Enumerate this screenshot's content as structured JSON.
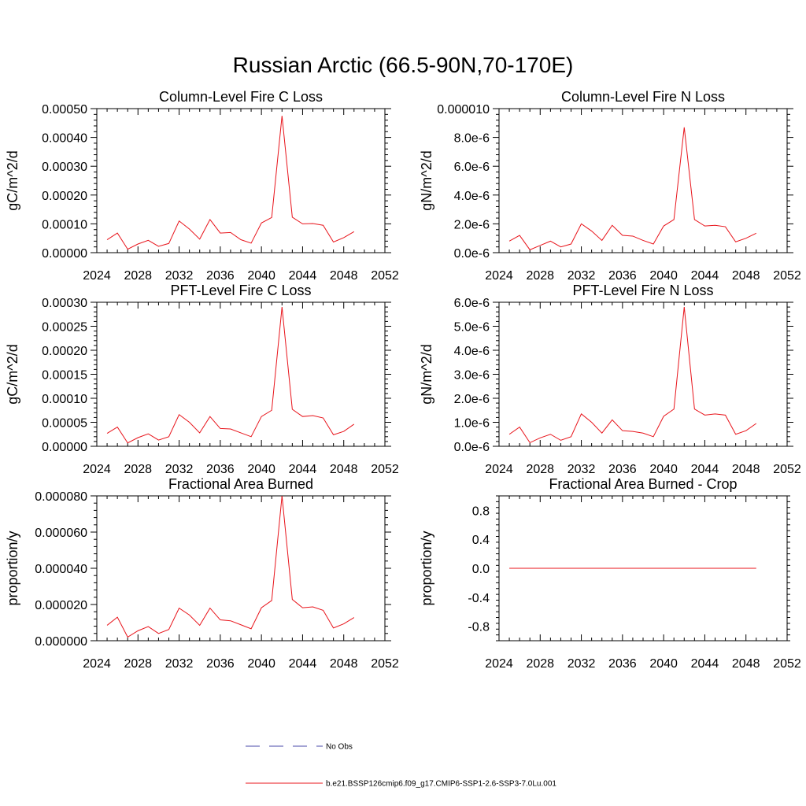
{
  "figure_title": "Russian Arctic (66.5-90N,70-170E)",
  "chart_data": [
    {
      "type": "line",
      "title": "Column-Level Fire C Loss",
      "ylabel": "gC/m^2/d",
      "xlim": [
        2024,
        2052
      ],
      "xticks": [
        "2024",
        "2028",
        "2032",
        "2036",
        "2040",
        "2044",
        "2048",
        "2052"
      ],
      "ylim": [
        0,
        0.0005
      ],
      "yticks": [
        "0.00000",
        "0.00010",
        "0.00020",
        "0.00030",
        "0.00040",
        "0.00050"
      ],
      "series": [
        {
          "name": "b.e21.BSSP126cmip6.f09_g17.CMIP6-SSP1-2.6-SSP3-7.0Lu.001",
          "color": "#e8141b",
          "x": [
            2025,
            2026,
            2027,
            2028,
            2029,
            2030,
            2031,
            2032,
            2033,
            2034,
            2035,
            2036,
            2037,
            2038,
            2039,
            2040,
            2041,
            2042,
            2043,
            2044,
            2045,
            2046,
            2047,
            2048,
            2049
          ],
          "values": [
            4.5e-05,
            6.8e-05,
            1.2e-05,
            3e-05,
            4.3e-05,
            2.2e-05,
            3.2e-05,
            0.00011,
            8.2e-05,
            4.7e-05,
            0.000115,
            6.8e-05,
            7e-05,
            4.5e-05,
            3.3e-05,
            0.000103,
            0.000122,
            0.000475,
            0.000123,
            0.0001,
            0.000101,
            9.5e-05,
            3.7e-05,
            5.2e-05,
            7.3e-05
          ]
        }
      ]
    },
    {
      "type": "line",
      "title": "Column-Level Fire N Loss",
      "ylabel": "gN/m^2/d",
      "xlim": [
        2024,
        2052
      ],
      "xticks": [
        "2024",
        "2028",
        "2032",
        "2036",
        "2040",
        "2044",
        "2048",
        "2052"
      ],
      "ylim": [
        0,
        1e-05
      ],
      "yticks": [
        "0.0e-6",
        "2.0e-6",
        "4.0e-6",
        "6.0e-6",
        "8.0e-6",
        "0.000010"
      ],
      "series": [
        {
          "name": "b.e21.BSSP126cmip6.f09_g17.CMIP6-SSP1-2.6-SSP3-7.0Lu.001",
          "color": "#e8141b",
          "x": [
            2025,
            2026,
            2027,
            2028,
            2029,
            2030,
            2031,
            2032,
            2033,
            2034,
            2035,
            2036,
            2037,
            2038,
            2039,
            2040,
            2041,
            2042,
            2043,
            2044,
            2045,
            2046,
            2047,
            2048,
            2049
          ],
          "values": [
            8e-07,
            1.2e-06,
            2e-07,
            5e-07,
            8e-07,
            4e-07,
            6e-07,
            2e-06,
            1.5e-06,
            8.5e-07,
            1.9e-06,
            1.2e-06,
            1.15e-06,
            8.5e-07,
            6e-07,
            1.85e-06,
            2.3e-06,
            8.7e-06,
            2.3e-06,
            1.85e-06,
            1.9e-06,
            1.8e-06,
            7.5e-07,
            1e-06,
            1.35e-06
          ]
        }
      ]
    },
    {
      "type": "line",
      "title": "PFT-Level Fire C Loss",
      "ylabel": "gC/m^2/d",
      "xlim": [
        2024,
        2052
      ],
      "xticks": [
        "2024",
        "2028",
        "2032",
        "2036",
        "2040",
        "2044",
        "2048",
        "2052"
      ],
      "ylim": [
        0,
        0.0003
      ],
      "yticks": [
        "0.00000",
        "0.00005",
        "0.00010",
        "0.00015",
        "0.00020",
        "0.00025",
        "0.00030"
      ],
      "series": [
        {
          "name": "b.e21.BSSP126cmip6.f09_g17.CMIP6-SSP1-2.6-SSP3-7.0Lu.001",
          "color": "#e8141b",
          "x": [
            2025,
            2026,
            2027,
            2028,
            2029,
            2030,
            2031,
            2032,
            2033,
            2034,
            2035,
            2036,
            2037,
            2038,
            2039,
            2040,
            2041,
            2042,
            2043,
            2044,
            2045,
            2046,
            2047,
            2048,
            2049
          ],
          "values": [
            2.7e-05,
            4e-05,
            7e-06,
            1.8e-05,
            2.6e-05,
            1.3e-05,
            2e-05,
            6.6e-05,
            5e-05,
            2.8e-05,
            6.2e-05,
            3.7e-05,
            3.6e-05,
            2.8e-05,
            2e-05,
            6.2e-05,
            7.5e-05,
            0.00029,
            7.7e-05,
            6.2e-05,
            6.4e-05,
            5.9e-05,
            2.4e-05,
            3.1e-05,
            4.6e-05
          ]
        }
      ]
    },
    {
      "type": "line",
      "title": "PFT-Level Fire N Loss",
      "ylabel": "gN/m^2/d",
      "xlim": [
        2024,
        2052
      ],
      "xticks": [
        "2024",
        "2028",
        "2032",
        "2036",
        "2040",
        "2044",
        "2048",
        "2052"
      ],
      "ylim": [
        0,
        6e-06
      ],
      "yticks": [
        "0.0e-6",
        "1.0e-6",
        "2.0e-6",
        "3.0e-6",
        "4.0e-6",
        "5.0e-6",
        "6.0e-6"
      ],
      "series": [
        {
          "name": "b.e21.BSSP126cmip6.f09_g17.CMIP6-SSP1-2.6-SSP3-7.0Lu.001",
          "color": "#e8141b",
          "x": [
            2025,
            2026,
            2027,
            2028,
            2029,
            2030,
            2031,
            2032,
            2033,
            2034,
            2035,
            2036,
            2037,
            2038,
            2039,
            2040,
            2041,
            2042,
            2043,
            2044,
            2045,
            2046,
            2047,
            2048,
            2049
          ],
          "values": [
            5e-07,
            8e-07,
            1.5e-07,
            3.5e-07,
            5e-07,
            2.5e-07,
            4e-07,
            1.35e-06,
            1e-06,
            5.5e-07,
            1.1e-06,
            6.5e-07,
            6.2e-07,
            5.5e-07,
            4e-07,
            1.25e-06,
            1.55e-06,
            5.8e-06,
            1.55e-06,
            1.3e-06,
            1.35e-06,
            1.3e-06,
            5e-07,
            6.5e-07,
            9.5e-07
          ]
        }
      ]
    },
    {
      "type": "line",
      "title": "Fractional Area Burned",
      "ylabel": "proportion/y",
      "xlim": [
        2024,
        2052
      ],
      "xticks": [
        "2024",
        "2028",
        "2032",
        "2036",
        "2040",
        "2044",
        "2048",
        "2052"
      ],
      "ylim": [
        0,
        8e-05
      ],
      "yticks": [
        "0.000000",
        "0.000020",
        "0.000040",
        "0.000060",
        "0.000080"
      ],
      "series": [
        {
          "name": "b.e21.BSSP126cmip6.f09_g17.CMIP6-SSP1-2.6-SSP3-7.0Lu.001",
          "color": "#e8141b",
          "x": [
            2025,
            2026,
            2027,
            2028,
            2029,
            2030,
            2031,
            2032,
            2033,
            2034,
            2035,
            2036,
            2037,
            2038,
            2039,
            2040,
            2041,
            2042,
            2043,
            2044,
            2045,
            2046,
            2047,
            2048,
            2049
          ],
          "values": [
            8.5e-06,
            1.3e-05,
            2e-06,
            5.5e-06,
            7.8e-06,
            4e-06,
            6.2e-06,
            1.8e-05,
            1.42e-05,
            8.5e-06,
            1.8e-05,
            1.15e-05,
            1.1e-05,
            8.8e-06,
            6.6e-06,
            1.82e-05,
            2.22e-05,
            8e-05,
            2.28e-05,
            1.82e-05,
            1.87e-05,
            1.68e-05,
            7e-06,
            9.3e-06,
            1.28e-05
          ]
        }
      ]
    },
    {
      "type": "line",
      "title": "Fractional Area Burned - Crop",
      "ylabel": "proportion/y",
      "xlim": [
        2024,
        2052
      ],
      "xticks": [
        "2024",
        "2028",
        "2032",
        "2036",
        "2040",
        "2044",
        "2048",
        "2052"
      ],
      "ylim": [
        -1,
        1
      ],
      "yticks": [
        "-0.8",
        "-0.4",
        "0.0",
        "0.4",
        "0.8"
      ],
      "series": [
        {
          "name": "b.e21.BSSP126cmip6.f09_g17.CMIP6-SSP1-2.6-SSP3-7.0Lu.001",
          "color": "#e8141b",
          "x": [
            2025,
            2026,
            2027,
            2028,
            2029,
            2030,
            2031,
            2032,
            2033,
            2034,
            2035,
            2036,
            2037,
            2038,
            2039,
            2040,
            2041,
            2042,
            2043,
            2044,
            2045,
            2046,
            2047,
            2048,
            2049
          ],
          "values": [
            0,
            0,
            0,
            0,
            0,
            0,
            0,
            0,
            0,
            0,
            0,
            0,
            0,
            0,
            0,
            0,
            0,
            0,
            0,
            0,
            0,
            0,
            0,
            0,
            0
          ]
        }
      ]
    }
  ],
  "legend": {
    "entries": [
      {
        "label": "No Obs",
        "color": "#4a4aa8",
        "style": "dashed"
      },
      {
        "label": "b.e21.BSSP126cmip6.f09_g17.CMIP6-SSP1-2.6-SSP3-7.0Lu.001",
        "color": "#e8141b",
        "style": "solid"
      }
    ]
  }
}
